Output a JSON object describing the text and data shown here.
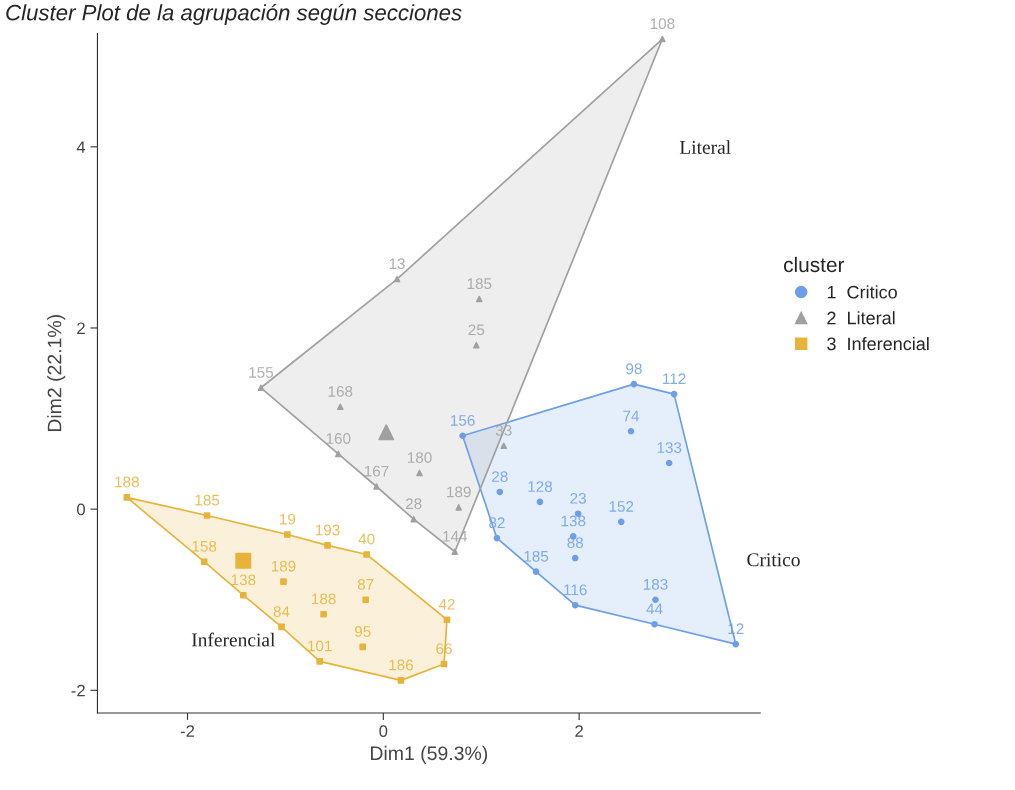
{
  "chart_data": {
    "type": "scatter",
    "title": "Cluster Plot de la agrupación según secciones",
    "xlabel": "Dim1 (59.3%)",
    "ylabel": "Dim2 (22.1%)",
    "legend_title": "cluster",
    "xlim": [
      -2.92,
      3.85
    ],
    "ylim": [
      -2.25,
      5.25
    ],
    "xticks": [
      -2,
      0,
      2
    ],
    "yticks": [
      -2,
      0,
      2,
      4
    ],
    "grid": false,
    "legend": "right",
    "series": [
      {
        "type": "area",
        "color": "#6d9eeb",
        "x": [
          0.81,
          2.56,
          2.97,
          3.6,
          2.77,
          1.96,
          1.56,
          1.16,
          0.81
        ],
        "values": [
          0.81,
          1.38,
          1.27,
          -1.49,
          -1.27,
          -1.06,
          -0.69,
          -0.32,
          0.81
        ]
      },
      {
        "type": "area",
        "color": "#a0a0a0",
        "x": [
          2.85,
          0.14,
          -1.25,
          -0.46,
          -0.07,
          0.31,
          0.73,
          2.85
        ],
        "values": [
          5.19,
          2.54,
          1.34,
          0.61,
          0.25,
          -0.11,
          -0.47,
          5.19
        ]
      },
      {
        "type": "area",
        "color": "#e7b33a",
        "x": [
          -2.62,
          -1.8,
          -0.98,
          -0.57,
          -0.17,
          0.65,
          0.62,
          0.18,
          -0.65,
          -1.04,
          -1.43,
          -1.83,
          -2.62
        ],
        "values": [
          0.13,
          -0.07,
          -0.28,
          -0.4,
          -0.5,
          -1.22,
          -1.71,
          -1.89,
          -1.68,
          -1.3,
          -0.95,
          -0.58,
          0.13
        ]
      },
      {
        "name": "1  Critico",
        "color": "#6d9eeb",
        "marker": "circle",
        "x": [
          2.56,
          2.97,
          0.81,
          2.53,
          2.92,
          1.19,
          1.6,
          1.99,
          1.94,
          1.96,
          2.43,
          1.16,
          1.56,
          1.96,
          2.78,
          2.77,
          3.6
        ],
        "values": [
          1.38,
          1.27,
          0.81,
          0.86,
          0.51,
          0.19,
          0.08,
          -0.05,
          -0.3,
          -0.54,
          -0.14,
          -0.32,
          -0.69,
          -1.06,
          -1.0,
          -1.27,
          -1.49
        ]
      },
      {
        "name": "2  Literal",
        "color": "#a0a0a0",
        "marker": "triangle",
        "x": [
          2.85,
          0.14,
          0.98,
          0.95,
          -1.25,
          -0.44,
          -0.46,
          -0.07,
          0.37,
          0.31,
          0.77,
          0.73,
          1.23
        ],
        "values": [
          5.19,
          2.54,
          2.32,
          1.81,
          1.34,
          1.13,
          0.61,
          0.25,
          0.4,
          -0.11,
          0.02,
          -0.47,
          0.7
        ]
      },
      {
        "name": "3  Inferencial",
        "color": "#e7b33a",
        "marker": "square",
        "x": [
          -2.62,
          -1.8,
          -0.98,
          -0.57,
          -0.17,
          -1.83,
          -1.02,
          -1.43,
          -0.18,
          -0.61,
          -1.04,
          0.65,
          -0.21,
          -0.65,
          0.62,
          0.18
        ],
        "values": [
          0.13,
          -0.07,
          -0.28,
          -0.4,
          -0.5,
          -0.58,
          -0.8,
          -0.95,
          -1.0,
          -1.16,
          -1.3,
          -1.22,
          -1.52,
          -1.68,
          -1.71,
          -1.89
        ]
      },
      {
        "color": "#a0a0a0",
        "marker": "triangle",
        "x": [
          0.03
        ],
        "values": [
          0.85
        ]
      },
      {
        "color": "#e7b33a",
        "marker": "square",
        "x": [
          -1.43
        ],
        "values": [
          -0.57
        ]
      }
    ],
    "annotations": [
      "Literal",
      "Critico",
      "Inferencial",
      {
        "text": "98",
        "x": 2.56,
        "y": 1.38
      },
      {
        "text": "112",
        "x": 2.97,
        "y": 1.27
      },
      {
        "text": "156",
        "x": 0.81,
        "y": 0.81
      },
      {
        "text": "74",
        "x": 2.53,
        "y": 0.86
      },
      {
        "text": "133",
        "x": 2.92,
        "y": 0.51
      },
      {
        "text": "28",
        "x": 1.19,
        "y": 0.19
      },
      {
        "text": "128",
        "x": 1.6,
        "y": 0.08
      },
      {
        "text": "23",
        "x": 1.99,
        "y": -0.05
      },
      {
        "text": "138",
        "x": 1.94,
        "y": -0.3
      },
      {
        "text": "88",
        "x": 1.96,
        "y": -0.54
      },
      {
        "text": "152",
        "x": 2.43,
        "y": -0.14
      },
      {
        "text": "82",
        "x": 1.16,
        "y": -0.32
      },
      {
        "text": "185",
        "x": 1.56,
        "y": -0.69
      },
      {
        "text": "116",
        "x": 1.96,
        "y": -1.06
      },
      {
        "text": "183",
        "x": 2.78,
        "y": -1.0
      },
      {
        "text": "44",
        "x": 2.77,
        "y": -1.27
      },
      {
        "text": "12",
        "x": 3.6,
        "y": -1.49
      },
      {
        "text": "108",
        "x": 2.85,
        "y": 5.19
      },
      {
        "text": "13",
        "x": 0.14,
        "y": 2.54
      },
      {
        "text": "185",
        "x": 0.98,
        "y": 2.32
      },
      {
        "text": "25",
        "x": 0.95,
        "y": 1.81
      },
      {
        "text": "155",
        "x": -1.25,
        "y": 1.34
      },
      {
        "text": "168",
        "x": -0.44,
        "y": 1.13
      },
      {
        "text": "160",
        "x": -0.46,
        "y": 0.61
      },
      {
        "text": "167",
        "x": -0.07,
        "y": 0.25
      },
      {
        "text": "180",
        "x": 0.37,
        "y": 0.4
      },
      {
        "text": "28",
        "x": 0.31,
        "y": -0.11
      },
      {
        "text": "189",
        "x": 0.77,
        "y": 0.02
      },
      {
        "text": "144",
        "x": 0.73,
        "y": -0.47
      },
      {
        "text": "33",
        "x": 1.23,
        "y": 0.7
      },
      {
        "text": "188",
        "x": -2.62,
        "y": 0.13
      },
      {
        "text": "185",
        "x": -1.8,
        "y": -0.07
      },
      {
        "text": "19",
        "x": -0.98,
        "y": -0.28
      },
      {
        "text": "193",
        "x": -0.57,
        "y": -0.4
      },
      {
        "text": "40",
        "x": -0.17,
        "y": -0.5
      },
      {
        "text": "158",
        "x": -1.83,
        "y": -0.58
      },
      {
        "text": "189",
        "x": -1.02,
        "y": -0.8
      },
      {
        "text": "138",
        "x": -1.43,
        "y": -0.95
      },
      {
        "text": "87",
        "x": -0.18,
        "y": -1.0
      },
      {
        "text": "188",
        "x": -0.61,
        "y": -1.16
      },
      {
        "text": "84",
        "x": -1.04,
        "y": -1.3
      },
      {
        "text": "42",
        "x": 0.65,
        "y": -1.22
      },
      {
        "text": "95",
        "x": -0.21,
        "y": -1.52
      },
      {
        "text": "101",
        "x": -0.65,
        "y": -1.68
      },
      {
        "text": "66",
        "x": 0.62,
        "y": -1.71
      },
      {
        "text": "186",
        "x": 0.18,
        "y": -1.89
      }
    ]
  }
}
